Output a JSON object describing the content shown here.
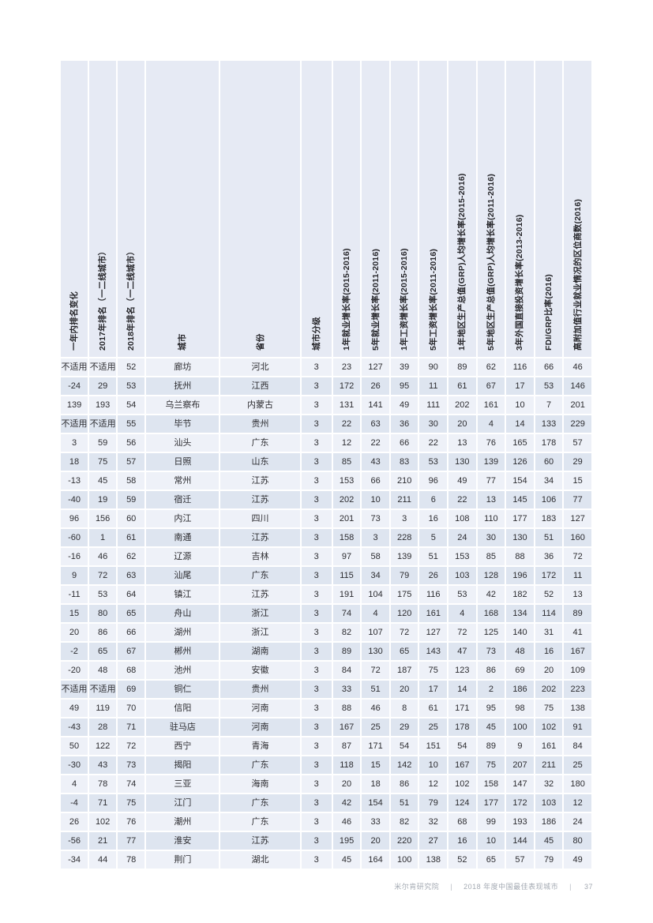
{
  "table": {
    "columns": [
      "一年内排名变化",
      "2017年排名（一二线城市）",
      "2018年排名（一二线城市）",
      "城市",
      "省份",
      "城市分级",
      "1年就业增长率(2015-2016)",
      "5年就业增长率(2011-2016)",
      "1年工资增长率(2015-2016)",
      "5年工资增长率(2011-2016)",
      "1年地区生产总值(GRP)人均增长率(2015-2016)",
      "5年地区生产总值(GRP)人均增长率(2011-2016)",
      "3年外国直接投资增长率(2013-2016)",
      "FDI/GRP比率(2016)",
      "高附加值行业就业情况的区位商数(2016)"
    ],
    "rows": [
      [
        "不适用",
        "不适用",
        "52",
        "廊坊",
        "河北",
        "3",
        "23",
        "127",
        "39",
        "90",
        "89",
        "62",
        "116",
        "66",
        "46"
      ],
      [
        "-24",
        "29",
        "53",
        "抚州",
        "江西",
        "3",
        "172",
        "26",
        "95",
        "11",
        "61",
        "67",
        "17",
        "53",
        "146"
      ],
      [
        "139",
        "193",
        "54",
        "乌兰察布",
        "内蒙古",
        "3",
        "131",
        "141",
        "49",
        "111",
        "202",
        "161",
        "10",
        "7",
        "201"
      ],
      [
        "不适用",
        "不适用",
        "55",
        "毕节",
        "贵州",
        "3",
        "22",
        "63",
        "36",
        "30",
        "20",
        "4",
        "14",
        "133",
        "229"
      ],
      [
        "3",
        "59",
        "56",
        "汕头",
        "广东",
        "3",
        "12",
        "22",
        "66",
        "22",
        "13",
        "76",
        "165",
        "178",
        "57"
      ],
      [
        "18",
        "75",
        "57",
        "日照",
        "山东",
        "3",
        "85",
        "43",
        "83",
        "53",
        "130",
        "139",
        "126",
        "60",
        "29"
      ],
      [
        "-13",
        "45",
        "58",
        "常州",
        "江苏",
        "3",
        "153",
        "66",
        "210",
        "96",
        "49",
        "77",
        "154",
        "34",
        "15"
      ],
      [
        "-40",
        "19",
        "59",
        "宿迁",
        "江苏",
        "3",
        "202",
        "10",
        "211",
        "6",
        "22",
        "13",
        "145",
        "106",
        "77"
      ],
      [
        "96",
        "156",
        "60",
        "内江",
        "四川",
        "3",
        "201",
        "73",
        "3",
        "16",
        "108",
        "110",
        "177",
        "183",
        "127"
      ],
      [
        "-60",
        "1",
        "61",
        "南通",
        "江苏",
        "3",
        "158",
        "3",
        "228",
        "5",
        "24",
        "30",
        "130",
        "51",
        "160"
      ],
      [
        "-16",
        "46",
        "62",
        "辽源",
        "吉林",
        "3",
        "97",
        "58",
        "139",
        "51",
        "153",
        "85",
        "88",
        "36",
        "72"
      ],
      [
        "9",
        "72",
        "63",
        "汕尾",
        "广东",
        "3",
        "115",
        "34",
        "79",
        "26",
        "103",
        "128",
        "196",
        "172",
        "11"
      ],
      [
        "-11",
        "53",
        "64",
        "镇江",
        "江苏",
        "3",
        "191",
        "104",
        "175",
        "116",
        "53",
        "42",
        "182",
        "52",
        "13"
      ],
      [
        "15",
        "80",
        "65",
        "舟山",
        "浙江",
        "3",
        "74",
        "4",
        "120",
        "161",
        "4",
        "168",
        "134",
        "114",
        "89"
      ],
      [
        "20",
        "86",
        "66",
        "湖州",
        "浙江",
        "3",
        "82",
        "107",
        "72",
        "127",
        "72",
        "125",
        "140",
        "31",
        "41"
      ],
      [
        "-2",
        "65",
        "67",
        "郴州",
        "湖南",
        "3",
        "89",
        "130",
        "65",
        "143",
        "47",
        "73",
        "48",
        "16",
        "167"
      ],
      [
        "-20",
        "48",
        "68",
        "池州",
        "安徽",
        "3",
        "84",
        "72",
        "187",
        "75",
        "123",
        "86",
        "69",
        "20",
        "109"
      ],
      [
        "不适用",
        "不适用",
        "69",
        "铜仁",
        "贵州",
        "3",
        "33",
        "51",
        "20",
        "17",
        "14",
        "2",
        "186",
        "202",
        "223"
      ],
      [
        "49",
        "119",
        "70",
        "信阳",
        "河南",
        "3",
        "88",
        "46",
        "8",
        "61",
        "171",
        "95",
        "98",
        "75",
        "138"
      ],
      [
        "-43",
        "28",
        "71",
        "驻马店",
        "河南",
        "3",
        "167",
        "25",
        "29",
        "25",
        "178",
        "45",
        "100",
        "102",
        "91"
      ],
      [
        "50",
        "122",
        "72",
        "西宁",
        "青海",
        "3",
        "87",
        "171",
        "54",
        "151",
        "54",
        "89",
        "9",
        "161",
        "84"
      ],
      [
        "-30",
        "43",
        "73",
        "揭阳",
        "广东",
        "3",
        "118",
        "15",
        "142",
        "10",
        "167",
        "75",
        "207",
        "211",
        "25"
      ],
      [
        "4",
        "78",
        "74",
        "三亚",
        "海南",
        "3",
        "20",
        "18",
        "86",
        "12",
        "102",
        "158",
        "147",
        "32",
        "180"
      ],
      [
        "-4",
        "71",
        "75",
        "江门",
        "广东",
        "3",
        "42",
        "154",
        "51",
        "79",
        "124",
        "177",
        "172",
        "103",
        "12"
      ],
      [
        "26",
        "102",
        "76",
        "潮州",
        "广东",
        "3",
        "46",
        "33",
        "82",
        "32",
        "68",
        "99",
        "193",
        "186",
        "24"
      ],
      [
        "-56",
        "21",
        "77",
        "淮安",
        "江苏",
        "3",
        "195",
        "20",
        "220",
        "27",
        "16",
        "10",
        "144",
        "45",
        "80"
      ],
      [
        "-34",
        "44",
        "78",
        "荆门",
        "湖北",
        "3",
        "45",
        "164",
        "100",
        "138",
        "52",
        "65",
        "57",
        "79",
        "49"
      ]
    ]
  },
  "footer": {
    "source": "米尔肯研究院",
    "separator": "|",
    "title": "2018 年度中国最佳表现城市",
    "page_number": "37"
  },
  "colors": {
    "header_bg": "#e6eaf4",
    "row_odd_bg": "#eef1f8",
    "row_even_bg": "#dee5f0",
    "text": "#2c2c30",
    "footer_text": "#a3a9b2"
  }
}
